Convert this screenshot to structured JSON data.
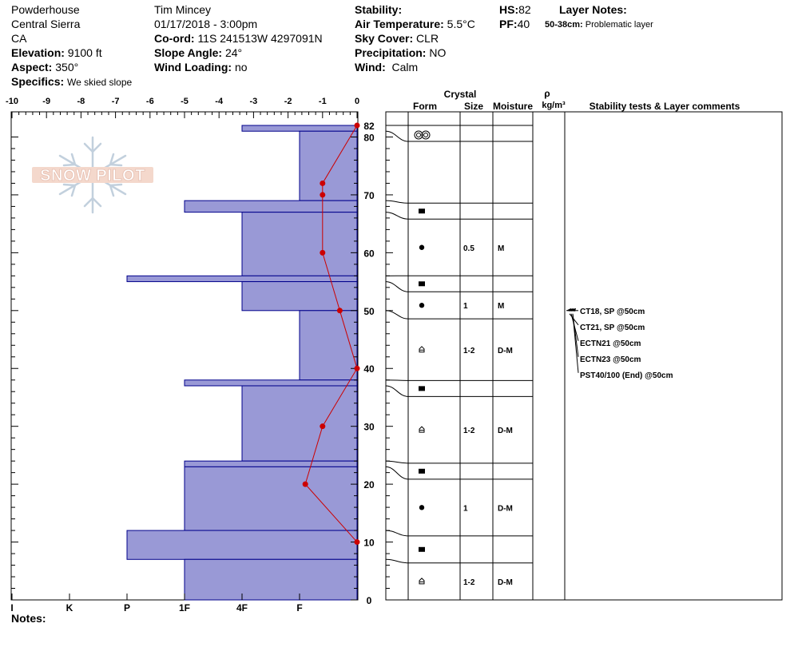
{
  "header": {
    "location": "Powderhouse",
    "range": "Central Sierra",
    "state": "CA",
    "elevation_label": "Elevation:",
    "elevation": "9100 ft",
    "aspect_label": "Aspect:",
    "aspect": "350°",
    "specifics_label": "Specifics:",
    "specifics": "We skied slope",
    "observer": "Tim Mincey",
    "datetime": "01/17/2018 - 3:00pm",
    "coord_label": "Co-ord:",
    "coord": "11S 241513W 4297091N",
    "slope_label": "Slope Angle:",
    "slope": "24°",
    "wind_loading_label": "Wind Loading:",
    "wind_loading": "no",
    "stability_label": "Stability:",
    "air_temp_label": "Air Temperature:",
    "air_temp": "5.5°C",
    "sky_label": "Sky Cover:",
    "sky": "CLR",
    "precip_label": "Precipitation:",
    "precip": "NO",
    "wind_label": "Wind:",
    "wind": "Calm",
    "hs_label": "HS:",
    "hs": "82",
    "pf_label": "PF:",
    "pf": "40",
    "layer_notes_label": "Layer Notes:",
    "layer_note_range": "50-38cm:",
    "layer_note_text": "Problematic layer"
  },
  "notes_label": "Notes:",
  "logo_text": "SNOW PILOT",
  "chart_data": {
    "type": "bar",
    "temp_axis": {
      "ticks": [
        "-10",
        "-9",
        "-8",
        "-7",
        "-6",
        "-5",
        "-4",
        "-3",
        "-2",
        "-1",
        "0"
      ],
      "range": [
        -10,
        0
      ]
    },
    "height_axis": {
      "ticks": [
        "82",
        "80",
        "70",
        "60",
        "50",
        "40",
        "30",
        "20",
        "10",
        "0"
      ],
      "range": [
        0,
        82
      ]
    },
    "hardness_labels": [
      "I",
      "K",
      "P",
      "1F",
      "4F",
      "F"
    ],
    "hardness_values": {
      "F": 1,
      "4F": 2,
      "1F": 3,
      "P": 4,
      "K": 5,
      "I": 6
    },
    "temperature_profile": [
      {
        "height": 82,
        "temp": 0
      },
      {
        "height": 72,
        "temp": -1
      },
      {
        "height": 70,
        "temp": -1
      },
      {
        "height": 60,
        "temp": -1
      },
      {
        "height": 50,
        "temp": -0.5
      },
      {
        "height": 40,
        "temp": 0
      },
      {
        "height": 30,
        "temp": -1
      },
      {
        "height": 20,
        "temp": -1.5
      },
      {
        "height": 10,
        "temp": 0
      }
    ],
    "layers": [
      {
        "top": 82,
        "bottom": 81,
        "hardness": "4F",
        "form": "",
        "size": "",
        "moisture": ""
      },
      {
        "top": 81,
        "bottom": 69,
        "hardness": "F",
        "form": "target-icon",
        "size": "",
        "moisture": ""
      },
      {
        "top": 69,
        "bottom": 67,
        "hardness": "1F",
        "form": "square-icon",
        "size": "",
        "moisture": ""
      },
      {
        "top": 67,
        "bottom": 56,
        "hardness": "4F",
        "form": "dot-icon",
        "size": "0.5",
        "moisture": "M"
      },
      {
        "top": 56,
        "bottom": 55,
        "hardness": "P",
        "form": "square-icon",
        "size": "",
        "moisture": ""
      },
      {
        "top": 55,
        "bottom": 50,
        "hardness": "4F",
        "form": "dot-icon",
        "size": "1",
        "moisture": "M"
      },
      {
        "top": 50,
        "bottom": 38,
        "hardness": "F",
        "form": "facet-icon",
        "size": "1-2",
        "moisture": "D-M"
      },
      {
        "top": 38,
        "bottom": 37,
        "hardness": "1F",
        "form": "square-icon",
        "size": "",
        "moisture": ""
      },
      {
        "top": 37,
        "bottom": 24,
        "hardness": "4F",
        "form": "facet-icon",
        "size": "1-2",
        "moisture": "D-M"
      },
      {
        "top": 24,
        "bottom": 23,
        "hardness": "1F",
        "form": "square-icon",
        "size": "",
        "moisture": ""
      },
      {
        "top": 23,
        "bottom": 12,
        "hardness": "1F",
        "form": "dot-icon",
        "size": "1",
        "moisture": "D-M"
      },
      {
        "top": 12,
        "bottom": 7,
        "hardness": "P",
        "form": "square-icon",
        "size": "",
        "moisture": ""
      },
      {
        "top": 7,
        "bottom": 0,
        "hardness": "1F",
        "form": "facet-icon",
        "size": "1-2",
        "moisture": "D-M"
      }
    ],
    "columns": {
      "crystal": "Crystal",
      "form": "Form",
      "size": "Size",
      "moisture": "Moisture",
      "rho": "ρ",
      "density_unit": "kg/m³",
      "stability": "Stability tests & Layer comments"
    },
    "stability_tests": [
      {
        "text": "CT18, SP @50cm",
        "height": 50
      },
      {
        "text": "CT21, SP @50cm",
        "height": 50
      },
      {
        "text": "ECTN21 @50cm",
        "height": 50
      },
      {
        "text": "ECTN23 @50cm",
        "height": 50
      },
      {
        "text": "PST40/100 (End) @50cm",
        "height": 50
      }
    ],
    "colors": {
      "bar_fill": "#9999d6",
      "bar_stroke": "#00008b",
      "temp_line": "#cc0000"
    }
  }
}
